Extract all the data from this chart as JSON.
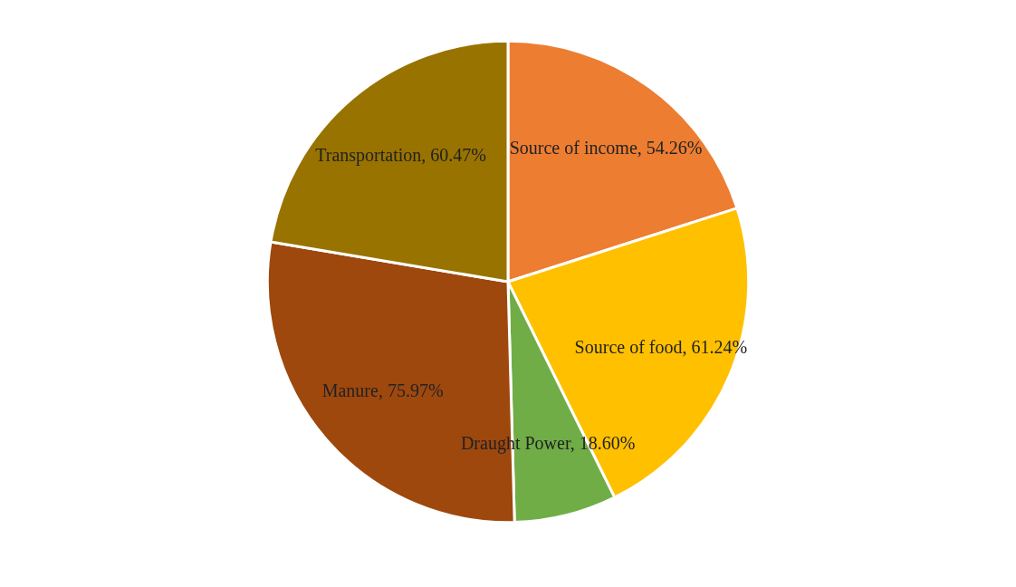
{
  "chart_data": {
    "type": "pie",
    "categories": [
      "Source of income",
      "Source of food",
      "Draught Power",
      "Manure",
      "Transportation"
    ],
    "values": [
      54.26,
      61.24,
      18.6,
      75.97,
      60.47
    ],
    "value_labels": [
      "54.26%",
      "61.24%",
      "18.60%",
      "75.97%",
      "60.47%"
    ],
    "colors": [
      "#ed7d31",
      "#ffc000",
      "#70ad47",
      "#9e480e",
      "#997300"
    ],
    "legend": false
  }
}
